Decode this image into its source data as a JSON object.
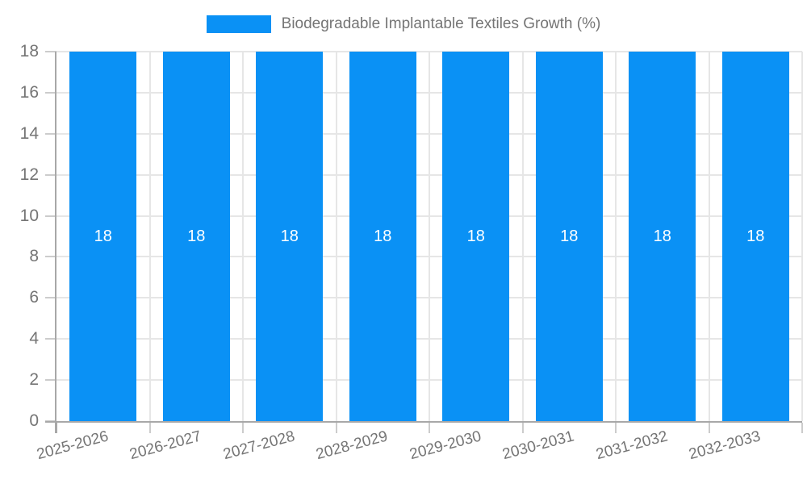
{
  "chart_data": {
    "type": "bar",
    "title": "",
    "legend_label": "Biodegradable Implantable Textiles Growth (%)",
    "legend_position": "top-center",
    "categories": [
      "2025-2026",
      "2026-2027",
      "2027-2028",
      "2028-2029",
      "2029-2030",
      "2030-2031",
      "2031-2032",
      "2032-2033"
    ],
    "values": [
      18,
      18,
      18,
      18,
      18,
      18,
      18,
      18
    ],
    "bar_value_labels": [
      "18",
      "18",
      "18",
      "18",
      "18",
      "18",
      "18",
      "18"
    ],
    "xlabel": "",
    "ylabel": "",
    "ylim": [
      0,
      18
    ],
    "yticks": [
      0,
      2,
      4,
      6,
      8,
      10,
      12,
      14,
      16,
      18
    ],
    "grid": "horizontal lines every 2 units; vertical lines at category boundaries",
    "x_tick_rotation_deg": -15,
    "colors": {
      "bar": "#0a91f5",
      "grid": "#e6e6e6",
      "axis": "#a8a8a8",
      "tick": "#cccccc",
      "axis_text": "#757575",
      "value_label": "#ffffff",
      "background": "#ffffff"
    }
  }
}
